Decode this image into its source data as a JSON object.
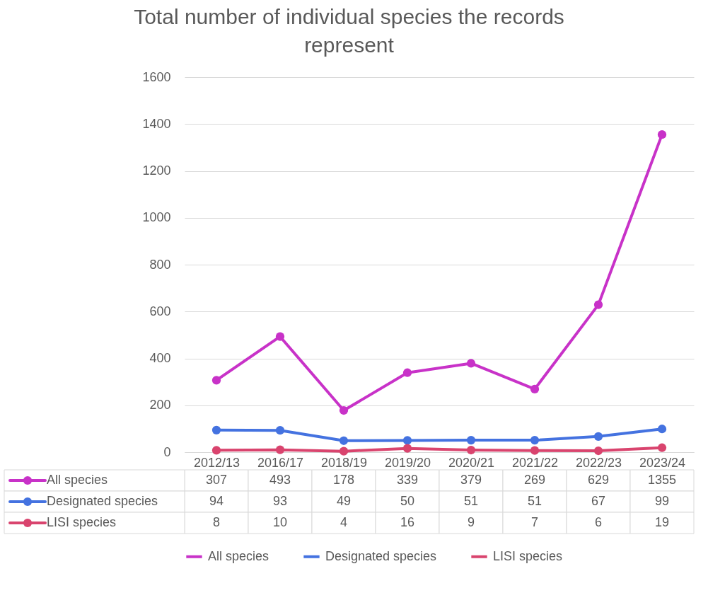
{
  "chart_data": {
    "type": "line",
    "title": "Total number of individual species the records represent",
    "categories": [
      "2012/13",
      "2016/17",
      "2018/19",
      "2019/20",
      "2020/21",
      "2021/22",
      "2022/23",
      "2023/24"
    ],
    "series": [
      {
        "name": "All species",
        "color": "#c832c8",
        "values": [
          307,
          493,
          178,
          339,
          379,
          269,
          629,
          1355
        ]
      },
      {
        "name": "Designated species",
        "color": "#4472e0",
        "values": [
          94,
          93,
          49,
          50,
          51,
          51,
          67,
          99
        ]
      },
      {
        "name": "LISI species",
        "color": "#d9446e",
        "values": [
          8,
          10,
          4,
          16,
          9,
          7,
          6,
          19
        ]
      }
    ],
    "ylim": [
      0,
      1600
    ],
    "yticks": [
      0,
      200,
      400,
      600,
      800,
      1000,
      1200,
      1400,
      1600
    ],
    "grid": "y",
    "legend": "bottom",
    "marker": "circle",
    "data_labels": true
  }
}
